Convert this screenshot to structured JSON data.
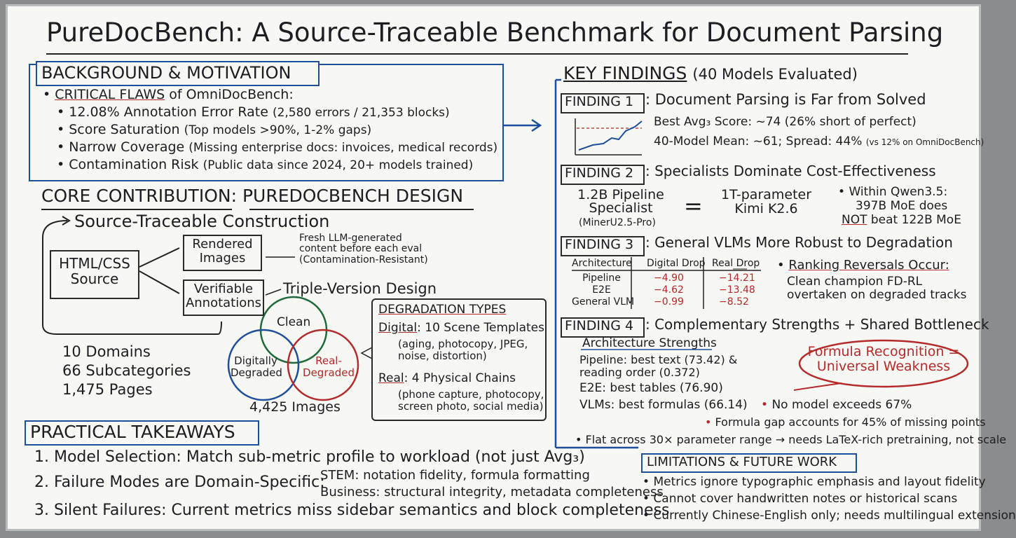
{
  "title": "PureDocBench: A Source-Traceable Benchmark for Document Parsing",
  "background": {
    "heading": "BACKGROUND & MOTIVATION",
    "lead_label": "CRITICAL FLAWS",
    "lead_text": "of OmniDocBench:",
    "items": [
      {
        "label": "12.08% Annotation Error Rate",
        "detail": "(2,580 errors / 21,353 blocks)"
      },
      {
        "label": "Score Saturation",
        "detail": "(Top models >90%, 1-2% gaps)"
      },
      {
        "label": "Narrow Coverage",
        "detail": "(Missing enterprise docs: invoices, medical records)"
      },
      {
        "label": "Contamination Risk",
        "detail": "(Public data since 2024, 20+ models trained)"
      }
    ]
  },
  "contribution": {
    "heading": "CORE CONTRIBUTION",
    "heading2": ": PUREDOCBENCH DESIGN",
    "construction": "Source-Traceable Construction",
    "source": "HTML/CSS Source",
    "rendered": "Rendered Images",
    "annotations": "Verifiable Annotations",
    "fresh_note": "Fresh LLM-generated content before each eval (Contamination-Resistant)",
    "triple": "Triple-Version Design",
    "venn": [
      "Clean",
      "Digitally Degraded",
      "Real-Degraded"
    ],
    "stats": [
      "10 Domains",
      "66 Subcategories",
      "1,475 Pages"
    ],
    "images": "4,425 Images",
    "degradation": {
      "heading": "DEGRADATION TYPES",
      "digital_label": "Digital",
      "digital_text": ": 10 Scene Templates",
      "digital_detail": "(aging, photocopy, JPEG, noise, distortion)",
      "real_label": "Real",
      "real_text": ": 4 Physical Chains",
      "real_detail": "(phone capture, photocopy, screen photo, social media)"
    }
  },
  "takeaways": {
    "heading": "PRACTICAL TAKEAWAYS",
    "item1": "1. Model Selection: Match sub-metric profile to workload (not just Avg₃)",
    "item2": "2. Failure Modes are Domain-Specific:",
    "item2_stem": "STEM: notation fidelity, formula formatting",
    "item2_business": "Business: structural integrity, metadata completeness",
    "item3": "3. Silent Failures: Current metrics miss sidebar semantics and block completeness"
  },
  "findings": {
    "heading": "KEY FINDINGS",
    "subheading": "(40 Models Evaluated)",
    "f1": {
      "label": "FINDING 1",
      "title": ": Document Parsing is Far from Solved",
      "line1": "Best Avg₃ Score: ~74 (26% short of perfect)",
      "line2": "40-Model Mean: ~61; Spread: 44%",
      "line2_note": "(vs 12% on OmniDocBench)"
    },
    "f2": {
      "label": "FINDING 2",
      "title": ": Specialists Dominate Cost-Effectiveness",
      "left": "1.2B Pipeline Specialist",
      "left_note": "(MinerU2.5-Pro)",
      "equals": "=",
      "right": "1T-parameter Kimi K2.6",
      "note_a": "Within Qwen3.5:",
      "note_b": "397B MoE does",
      "note_not": "NOT",
      "note_c": "beat 122B MoE"
    },
    "f3": {
      "label": "FINDING 3",
      "title": ": General VLMs More Robust to Degradation",
      "headers": [
        "Architecture",
        "Digital Drop",
        "Real Drop"
      ],
      "rows": [
        [
          "Pipeline",
          "−4.90",
          "−14.21"
        ],
        [
          "E2E",
          "−4.62",
          "−13.48"
        ],
        [
          "General VLM",
          "−0.99",
          "−8.52"
        ]
      ],
      "reversal": "Ranking Reversals Occur:",
      "reversal_text": "Clean champion FD-RL overtaken on degraded tracks"
    },
    "f4": {
      "label": "FINDING 4",
      "title": ": Complementary Strengths + Shared Bottleneck",
      "strengths": "Architecture Strengths",
      "pipeline": "Pipeline: best text (73.42) & reading order (0.372)",
      "e2e": "E2E: best tables (76.90)",
      "vlms": "VLMs: best formulas (66.14)",
      "weakness": "Formula Recognition = Universal Weakness",
      "bullets": [
        "No model exceeds 67%",
        "Formula gap accounts for 45% of missing points",
        "Flat across 30× parameter range → needs LaTeX-rich pretraining, not scale"
      ]
    }
  },
  "limitations": {
    "heading": "LIMITATIONS & FUTURE WORK",
    "items": [
      "Metrics ignore typographic emphasis and layout fidelity",
      "Cannot cover handwritten notes or historical scans",
      "Currently Chinese-English only; needs multilingual extension"
    ]
  }
}
